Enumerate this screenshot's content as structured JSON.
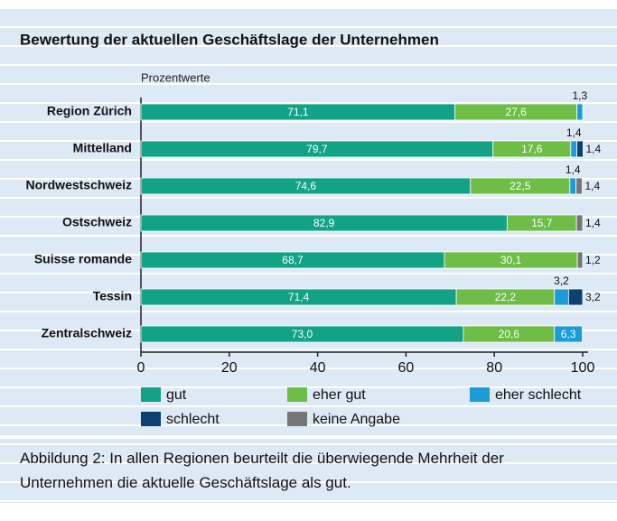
{
  "chart_data": {
    "type": "stacked-bar-horizontal",
    "title": "Bewertung der aktuellen Geschäftslage der Unternehmen",
    "axis_label": "Prozentwerte",
    "categories": [
      "Region Zürich",
      "Mittelland",
      "Nordwestschweiz",
      "Ostschweiz",
      "Suisse romande",
      "Tessin",
      "Zentralschweiz"
    ],
    "series": [
      {
        "name": "gut",
        "color": "#12a386",
        "values": [
          71.1,
          79.7,
          74.6,
          82.9,
          68.7,
          71.4,
          73.0
        ],
        "value_labels": [
          "71,1",
          "79,7",
          "74,6",
          "82,9",
          "68,7",
          "71,4",
          "73,0"
        ]
      },
      {
        "name": "eher gut",
        "color": "#6dbd46",
        "values": [
          27.6,
          17.6,
          22.5,
          15.7,
          30.1,
          22.2,
          20.6
        ],
        "value_labels": [
          "27,6",
          "17,6",
          "22,5",
          "15,7",
          "30,1",
          "22,2",
          "20,6"
        ]
      },
      {
        "name": "eher schlecht",
        "color": "#1b9bd7",
        "values": [
          1.3,
          1.4,
          1.4,
          null,
          null,
          3.2,
          6.3
        ],
        "value_labels": [
          "1,3",
          "1,4",
          "1,4",
          null,
          null,
          "3,2",
          "6,3"
        ]
      },
      {
        "name": "schlecht",
        "color": "#0d3f73",
        "values": [
          null,
          1.4,
          null,
          null,
          null,
          3.2,
          null
        ],
        "value_labels": [
          null,
          "1,4",
          null,
          null,
          null,
          "3,2",
          null
        ]
      },
      {
        "name": "keine Angabe",
        "color": "#767676",
        "values": [
          null,
          null,
          1.4,
          1.4,
          1.2,
          null,
          null
        ],
        "value_labels": [
          null,
          null,
          "1,4",
          "1,4",
          "1,2",
          null,
          null
        ]
      }
    ],
    "xlim": [
      0,
      100
    ],
    "xticks": [
      0,
      20,
      40,
      60,
      80,
      100
    ],
    "caption": "Abbildung 2: In allen Regionen beurteilt die überwiegende Mehrheit der Unternehmen die aktuelle Geschäftslage als gut."
  }
}
